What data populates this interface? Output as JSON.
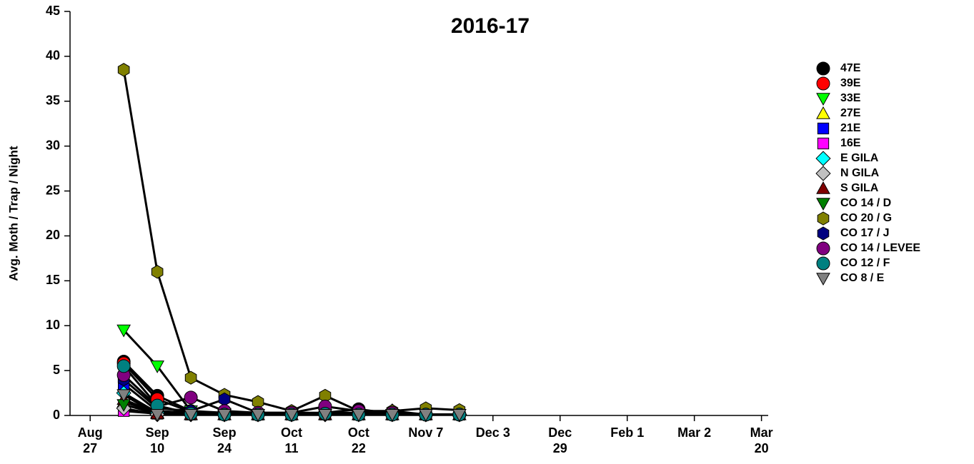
{
  "chart_data": {
    "type": "line",
    "title": "2016-17",
    "y_label": "Avg. Moth / Trap / Night",
    "x": [
      0.5,
      1,
      1.5,
      2,
      2.5,
      3,
      3.5,
      4,
      4.5,
      5,
      5.5
    ],
    "xlim": [
      -0.3,
      10.1
    ],
    "xticks": [
      {
        "value": 0,
        "label": "Aug 27"
      },
      {
        "value": 1,
        "label": "Sep 10"
      },
      {
        "value": 2,
        "label": "Sep 24"
      },
      {
        "value": 3,
        "label": "Oct 11"
      },
      {
        "value": 4,
        "label": "Oct 22"
      },
      {
        "value": 5,
        "label": "Nov 7"
      },
      {
        "value": 6,
        "label": "Dec 3"
      },
      {
        "value": 7,
        "label": "Dec 29"
      },
      {
        "value": 8,
        "label": "Feb 1"
      },
      {
        "value": 9,
        "label": "Mar 2"
      },
      {
        "value": 10,
        "label": "Mar 20"
      }
    ],
    "ylim": [
      0,
      45
    ],
    "yticks": [
      0,
      5,
      10,
      15,
      20,
      25,
      30,
      35,
      40,
      45
    ],
    "line_color": "#000000",
    "series": [
      {
        "name": "47E",
        "color": "#000000",
        "marker": "circle",
        "values": [
          6,
          2.2,
          0.5,
          0.3,
          0.2,
          0.2,
          0.3,
          0.7,
          0.2,
          0.1,
          0.1
        ]
      },
      {
        "name": "39E",
        "color": "#ff0000",
        "marker": "circle",
        "values": [
          5.8,
          1.8,
          0.4,
          0.2,
          0.1,
          0.1,
          0.2,
          0.3,
          0.1,
          0.1,
          0.1
        ]
      },
      {
        "name": "33E",
        "color": "#00ff00",
        "marker": "triangle-down",
        "values": [
          9.5,
          5.5,
          0.5,
          0.2,
          0.1,
          0.1,
          0.1,
          0.1,
          0.1,
          0.1,
          0.1
        ]
      },
      {
        "name": "27E",
        "color": "#ffff00",
        "marker": "triangle-up",
        "values": [
          1.5,
          0.3,
          0.1,
          0.1,
          0.1,
          0.1,
          0.1,
          0.1,
          0.1,
          0.1,
          0.1
        ]
      },
      {
        "name": "21E",
        "color": "#0000ff",
        "marker": "square",
        "values": [
          3.5,
          0.5,
          0.3,
          0.2,
          0.1,
          0.1,
          0.2,
          0.1,
          0.1,
          0.1,
          0.1
        ]
      },
      {
        "name": "16E",
        "color": "#ff00ff",
        "marker": "square",
        "values": [
          0.5,
          0.2,
          0.1,
          0.1,
          0.1,
          0.1,
          0.1,
          0.1,
          0.1,
          0.1,
          0.1
        ]
      },
      {
        "name": "E GILA",
        "color": "#00ffff",
        "marker": "diamond",
        "values": [
          2.5,
          0.3,
          0.1,
          0.1,
          0.1,
          0.1,
          0.1,
          0.1,
          0.1,
          0.1,
          0.1
        ]
      },
      {
        "name": "N GILA",
        "color": "#c0c0c0",
        "marker": "diamond",
        "values": [
          0.8,
          0.1,
          0.1,
          0.1,
          0.1,
          0.1,
          0.1,
          0.1,
          0.5,
          0.1,
          0.1
        ]
      },
      {
        "name": "S GILA",
        "color": "#800000",
        "marker": "triangle-up",
        "values": [
          1.8,
          0.2,
          0.1,
          0.1,
          0.1,
          0.1,
          0.1,
          0.1,
          0.1,
          0.1,
          0.1
        ]
      },
      {
        "name": "CO 14 / D",
        "color": "#008000",
        "marker": "triangle-down",
        "values": [
          1.2,
          0.2,
          0.1,
          0.1,
          0.1,
          0.1,
          0.1,
          0.1,
          0.1,
          0.1,
          0.1
        ]
      },
      {
        "name": "CO 20 / G",
        "color": "#808000",
        "marker": "hexagon",
        "values": [
          38.5,
          16,
          4.2,
          2.3,
          1.5,
          0.5,
          2.2,
          0.5,
          0.5,
          0.8,
          0.6
        ]
      },
      {
        "name": "CO 17 / J",
        "color": "#000080",
        "marker": "hexagon",
        "values": [
          4,
          0.8,
          0.5,
          1.8,
          0.3,
          0.3,
          0.3,
          0.3,
          0.3,
          0.1,
          0.1
        ]
      },
      {
        "name": "CO 14 / LEVEE",
        "color": "#800080",
        "marker": "circle",
        "values": [
          4.5,
          1,
          2,
          0.5,
          0.3,
          0.3,
          1,
          0.5,
          0.3,
          0.1,
          0.1
        ]
      },
      {
        "name": "CO 12 / F",
        "color": "#008080",
        "marker": "circle",
        "values": [
          5.5,
          1.1,
          0.2,
          0.1,
          0.1,
          0.1,
          0.2,
          0.1,
          0.1,
          0.1,
          0.1
        ]
      },
      {
        "name": "CO 8 / E",
        "color": "#808080",
        "marker": "triangle-down",
        "values": [
          2.3,
          0.1,
          0.1,
          0.1,
          0.1,
          0.1,
          0.1,
          0.1,
          0.1,
          0.1,
          0.1
        ]
      }
    ]
  }
}
